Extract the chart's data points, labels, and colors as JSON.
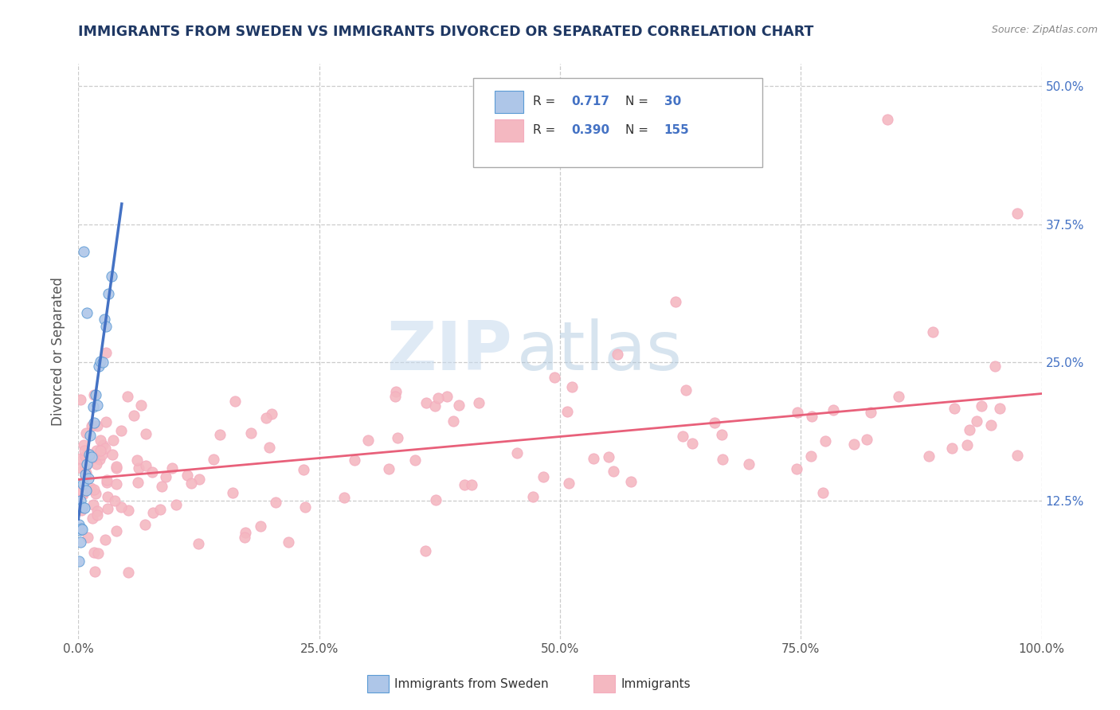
{
  "title": "IMMIGRANTS FROM SWEDEN VS IMMIGRANTS DIVORCED OR SEPARATED CORRELATION CHART",
  "source": "Source: ZipAtlas.com",
  "ylabel": "Divorced or Separated",
  "legend_R1": "R = ",
  "legend_R1_val": "0.717",
  "legend_N1": "N = ",
  "legend_N1_val": "30",
  "legend_R2": "R = ",
  "legend_R2_val": "0.390",
  "legend_N2": "N = ",
  "legend_N2_val": "155",
  "watermark_zip": "ZIP",
  "watermark_atlas": "atlas",
  "blue_line_color": "#4472c4",
  "pink_line_color": "#e8607a",
  "scatter_blue_color": "#aec6e8",
  "scatter_pink_color": "#f4b8c1",
  "scatter_blue_edge": "#5b9bd5",
  "scatter_pink_edge": "#f4acbe",
  "bg_color": "#ffffff",
  "grid_color": "#cccccc",
  "xlim": [
    0,
    100
  ],
  "ylim": [
    0,
    52
  ],
  "ytick_positions": [
    12.5,
    25.0,
    37.5,
    50.0
  ],
  "xtick_positions": [
    0,
    25,
    50,
    75,
    100
  ],
  "title_color": "#1f3864",
  "source_color": "#888888",
  "right_tick_color": "#4472c4",
  "bottom_legend_labels": [
    "Immigrants from Sweden",
    "Immigrants"
  ]
}
